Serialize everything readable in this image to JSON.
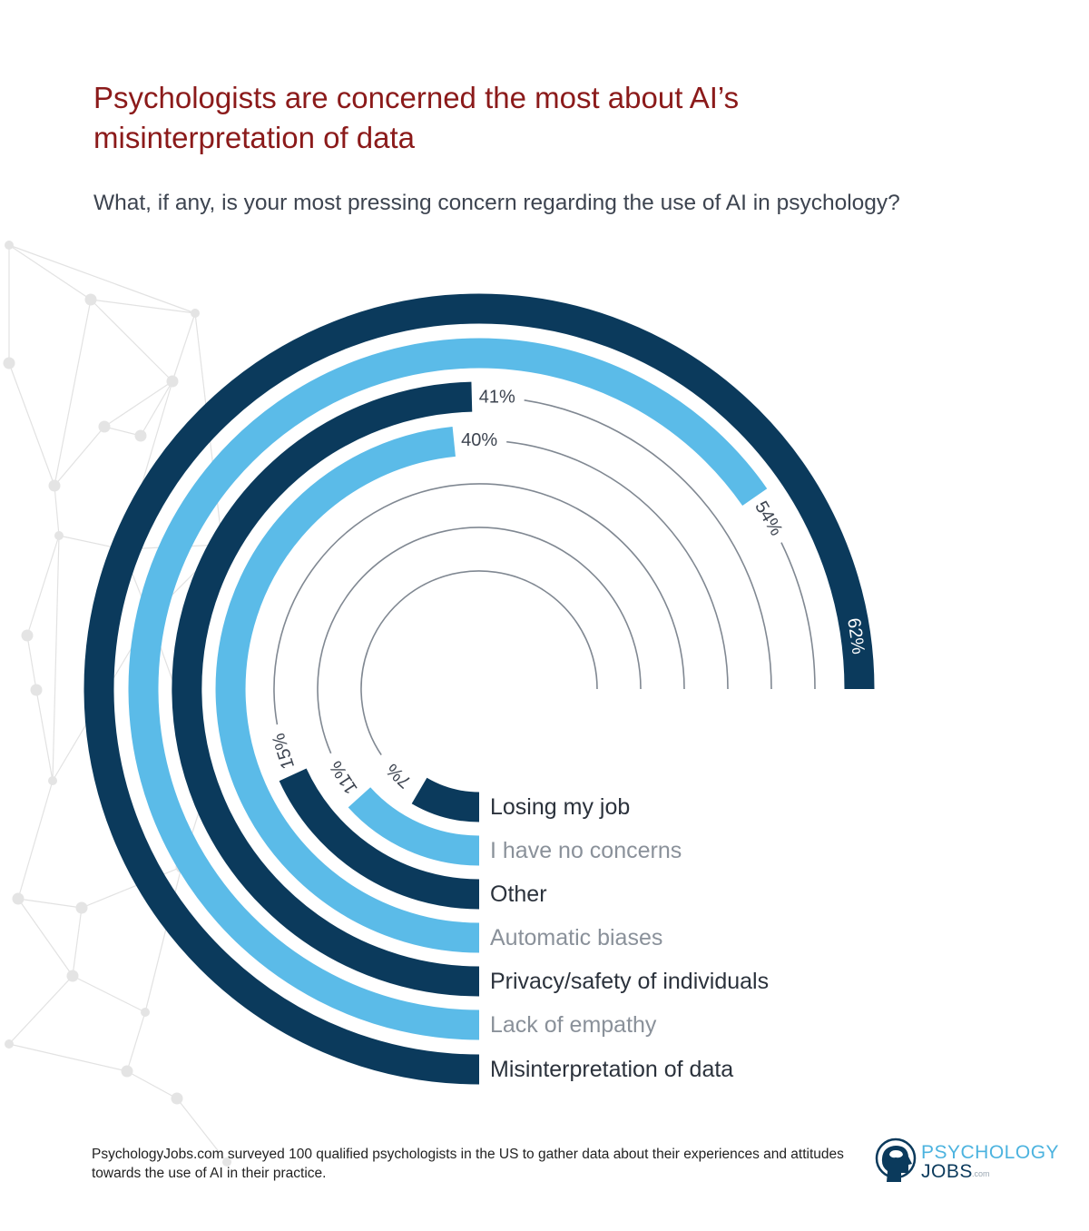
{
  "header": {
    "title": "Psychologists are concerned the most about AI’s misinterpretation of data",
    "subtitle": "What, if any, is your most pressing concern regarding the use of AI in psychology?"
  },
  "colors": {
    "title": "#8b1a1a",
    "dark_bar": "#0b3a5c",
    "light_bar": "#5bbbe8",
    "guide_line": "#808892",
    "dark_label": "#2b323c",
    "light_label": "#8a919a"
  },
  "chart_data": {
    "type": "radial-bar",
    "title": "Psychologists are concerned the most about AI’s misinterpretation of data",
    "subtitle": "What, if any, is your most pressing concern regarding the use of AI in psychology?",
    "unit": "%",
    "categories": [
      "Losing my job",
      "I have no concerns",
      "Other",
      "Automatic biases",
      "Privacy/safety of individuals",
      "Lack of empathy",
      "Misinterpretation of data"
    ],
    "values": [
      7,
      11,
      15,
      40,
      41,
      54,
      62
    ],
    "value_labels": [
      "7%",
      "11%",
      "15%",
      "40%",
      "41%",
      "54%",
      "62%"
    ],
    "bar_colors": [
      "dark",
      "light",
      "dark",
      "light",
      "dark",
      "light",
      "dark"
    ],
    "scale_max_sweep_value": 62,
    "legend_position": "bottom-right, aligned with bar starts"
  },
  "footer": {
    "note": "PsychologyJobs.com surveyed 100 qualified psychologists in the US to gather data about their experiences and attitudes towards the use of AI in their practice.",
    "logo": {
      "icon": "head-profile-brain-icon",
      "word1": "PSYCHOLOGY",
      "word2": "JOBS",
      "suffix": ".com"
    }
  }
}
